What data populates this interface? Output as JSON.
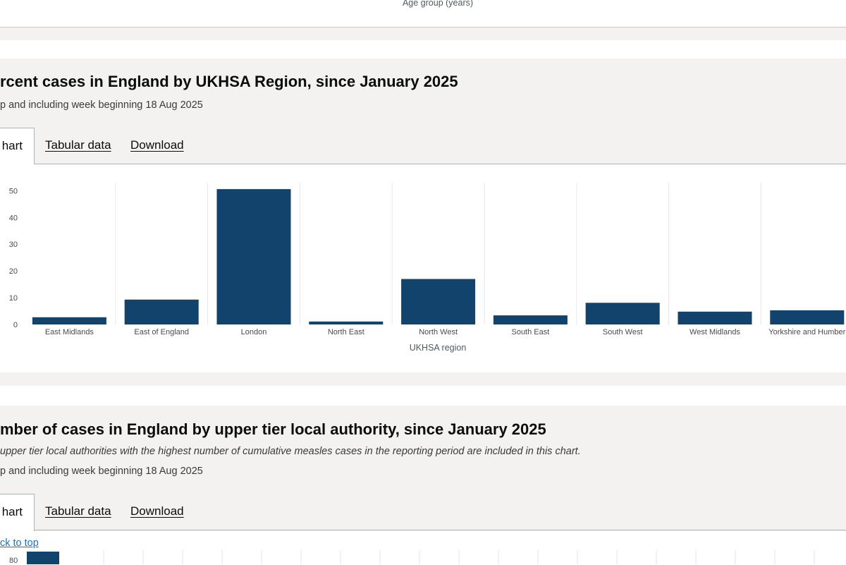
{
  "prev_chart": {
    "xlabel": "Age group (years)"
  },
  "region_section": {
    "title": "rcent cases in England by UKHSA Region, since January 2025",
    "subtitle": "p and including week beginning 18 Aug 2025",
    "tabs": {
      "active": "hart",
      "tabular": "Tabular data",
      "download": "Download"
    }
  },
  "chart_data": [
    {
      "type": "bar",
      "categories": [
        "East Midlands",
        "East of England",
        "London",
        "North East",
        "North West",
        "South East",
        "South West",
        "West Midlands",
        "Yorkshire and Humber"
      ],
      "values": [
        2.7,
        9.3,
        50.6,
        1.1,
        17.0,
        3.4,
        8.1,
        4.8,
        5.3
      ],
      "xlabel": "UKHSA region",
      "ylabel": "",
      "ylim": [
        0,
        53
      ],
      "yticks": [
        0,
        10,
        20,
        30,
        40,
        50
      ],
      "grid": "vertical",
      "color": "#12436d"
    }
  ],
  "utla_section": {
    "title": "mber of cases in England by upper tier local authority, since January 2025",
    "note": "upper tier local authorities with the highest number of cumulative measles cases in the reporting period are included in this chart.",
    "subtitle": "p and including week beginning 18 Aug 2025",
    "tabs": {
      "active": "hart",
      "tabular": "Tabular data",
      "download": "Download"
    },
    "tick_80": "80"
  },
  "back_to_top": "ck to top"
}
